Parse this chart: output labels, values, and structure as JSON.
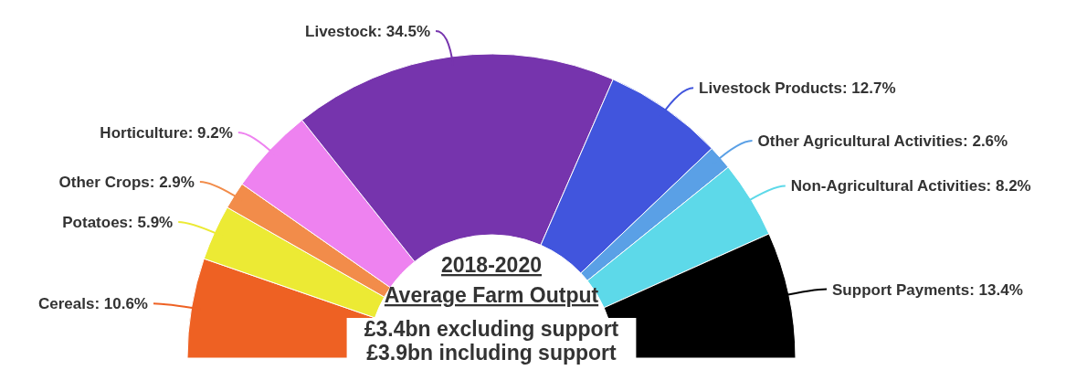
{
  "chart_data": {
    "type": "donut",
    "title": "2018-2020 Average Farm Output",
    "subtitle": "£3.4bn excluding support",
    "annotations": [
      "£3.9bn including support"
    ],
    "categories": [
      "Cereals",
      "Potatoes",
      "Other Crops",
      "Horticulture",
      "Livestock",
      "Livestock Products",
      "Other Agricultural Activities",
      "Non-Agricultural Activities",
      "Support Payments"
    ],
    "values": [
      10.6,
      5.9,
      2.9,
      9.2,
      34.5,
      12.7,
      2.6,
      8.2,
      13.4
    ],
    "value_labels": [
      "10.6%",
      "5.9%",
      "2.9%",
      "9.2%",
      "34.5%",
      "12.7%",
      "2.6%",
      "8.2%",
      "13.4%"
    ],
    "colors": [
      "#ee6123",
      "#ecea34",
      "#f28c4a",
      "#ee82f0",
      "#7634ad",
      "#4155dd",
      "#5aa0e6",
      "#5dd9e9",
      "#000000"
    ]
  }
}
